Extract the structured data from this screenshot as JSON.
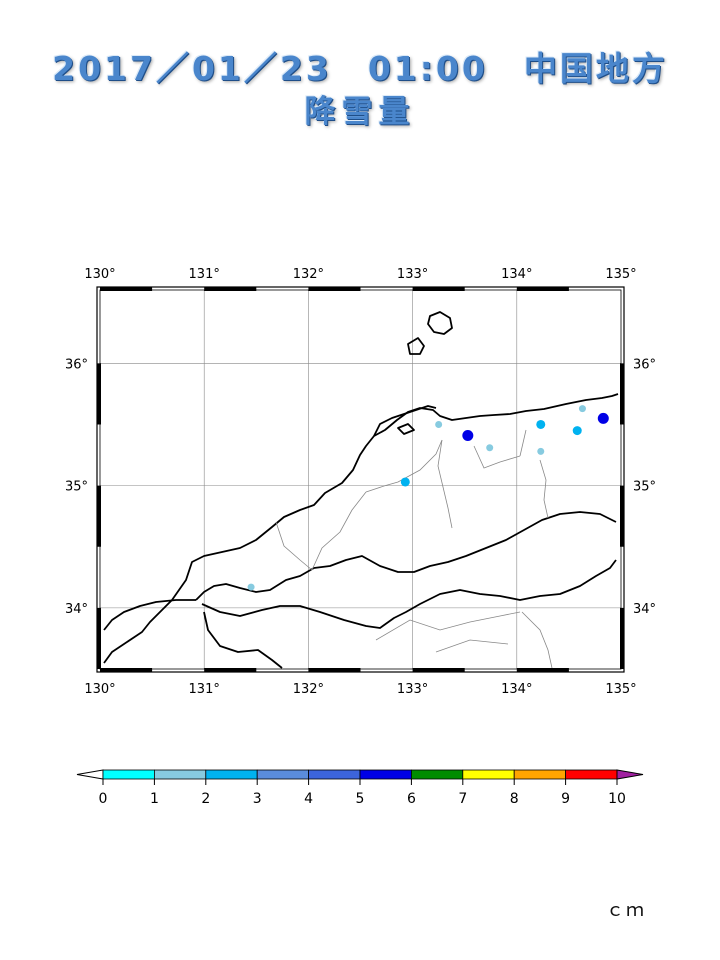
{
  "title": {
    "line1": "2017／01／23　01:00　中国地方",
    "line2": "降雪量"
  },
  "map": {
    "lon_range": [
      130,
      135
    ],
    "lat_range": [
      33.5,
      36.6
    ],
    "lon_ticks": [
      "130°",
      "131°",
      "132°",
      "133°",
      "134°",
      "135°"
    ],
    "lat_ticks": [
      "34°",
      "35°",
      "36°"
    ],
    "grid": true,
    "observations": [
      {
        "lon": 131.45,
        "lat": 34.17,
        "value": 1.5
      },
      {
        "lon": 132.93,
        "lat": 35.03,
        "value": 2.5
      },
      {
        "lon": 133.25,
        "lat": 35.5,
        "value": 1.5
      },
      {
        "lon": 133.53,
        "lat": 35.41,
        "value": 5.5
      },
      {
        "lon": 133.74,
        "lat": 35.31,
        "value": 1.5
      },
      {
        "lon": 134.23,
        "lat": 35.5,
        "value": 2.5
      },
      {
        "lon": 134.23,
        "lat": 35.28,
        "value": 1.5
      },
      {
        "lon": 134.58,
        "lat": 35.45,
        "value": 2.5
      },
      {
        "lon": 134.63,
        "lat": 35.63,
        "value": 1.5
      },
      {
        "lon": 134.83,
        "lat": 35.55,
        "value": 5.5
      }
    ]
  },
  "colorbar": {
    "ticks": [
      "0",
      "1",
      "2",
      "3",
      "4",
      "5",
      "6",
      "7",
      "8",
      "9",
      "10"
    ],
    "colors": [
      "#00ffff",
      "#87cbe0",
      "#00b2f0",
      "#5a8cdc",
      "#3c64dc",
      "#0000e6",
      "#008c00",
      "#ffff00",
      "#ffa500",
      "#ff0000"
    ],
    "over_color": "#a020a0",
    "under_color": "#ffffff",
    "unit": "ｃｍ"
  }
}
